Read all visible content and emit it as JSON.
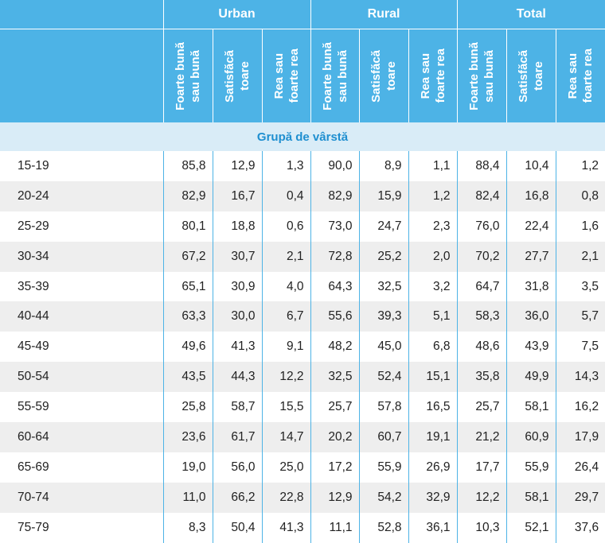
{
  "groups": [
    "Urban",
    "Rural",
    "Total"
  ],
  "subcolumns": [
    "Foarte bună sau bună",
    "Satisfăcă toare",
    "Rea sau foarte rea"
  ],
  "section_label": "Grupă de vârstă",
  "rows": [
    {
      "label": "15-19",
      "values": [
        "85,8",
        "12,9",
        "1,3",
        "90,0",
        "8,9",
        "1,1",
        "88,4",
        "10,4",
        "1,2"
      ]
    },
    {
      "label": "20-24",
      "values": [
        "82,9",
        "16,7",
        "0,4",
        "82,9",
        "15,9",
        "1,2",
        "82,4",
        "16,8",
        "0,8"
      ]
    },
    {
      "label": "25-29",
      "values": [
        "80,1",
        "18,8",
        "0,6",
        "73,0",
        "24,7",
        "2,3",
        "76,0",
        "22,4",
        "1,6"
      ]
    },
    {
      "label": "30-34",
      "values": [
        "67,2",
        "30,7",
        "2,1",
        "72,8",
        "25,2",
        "2,0",
        "70,2",
        "27,7",
        "2,1"
      ]
    },
    {
      "label": "35-39",
      "values": [
        "65,1",
        "30,9",
        "4,0",
        "64,3",
        "32,5",
        "3,2",
        "64,7",
        "31,8",
        "3,5"
      ]
    },
    {
      "label": "40-44",
      "values": [
        "63,3",
        "30,0",
        "6,7",
        "55,6",
        "39,3",
        "5,1",
        "58,3",
        "36,0",
        "5,7"
      ]
    },
    {
      "label": "45-49",
      "values": [
        "49,6",
        "41,3",
        "9,1",
        "48,2",
        "45,0",
        "6,8",
        "48,6",
        "43,9",
        "7,5"
      ]
    },
    {
      "label": "50-54",
      "values": [
        "43,5",
        "44,3",
        "12,2",
        "32,5",
        "52,4",
        "15,1",
        "35,8",
        "49,9",
        "14,3"
      ]
    },
    {
      "label": "55-59",
      "values": [
        "25,8",
        "58,7",
        "15,5",
        "25,7",
        "57,8",
        "16,5",
        "25,7",
        "58,1",
        "16,2"
      ]
    },
    {
      "label": "60-64",
      "values": [
        "23,6",
        "61,7",
        "14,7",
        "20,2",
        "60,7",
        "19,1",
        "21,2",
        "60,9",
        "17,9"
      ]
    },
    {
      "label": "65-69",
      "values": [
        "19,0",
        "56,0",
        "25,0",
        "17,2",
        "55,9",
        "26,9",
        "17,7",
        "55,9",
        "26,4"
      ]
    },
    {
      "label": "70-74",
      "values": [
        "11,0",
        "66,2",
        "22,8",
        "12,9",
        "54,2",
        "32,9",
        "12,2",
        "58,1",
        "29,7"
      ]
    },
    {
      "label": "75-79",
      "values": [
        "8,3",
        "50,4",
        "41,3",
        "11,1",
        "52,8",
        "36,1",
        "10,3",
        "52,1",
        "37,6"
      ]
    }
  ],
  "colors": {
    "header_bg": "#4db3e6",
    "section_bg": "#d9ecf7",
    "section_text": "#1f8fd0",
    "stripe": "#eeeeee"
  }
}
